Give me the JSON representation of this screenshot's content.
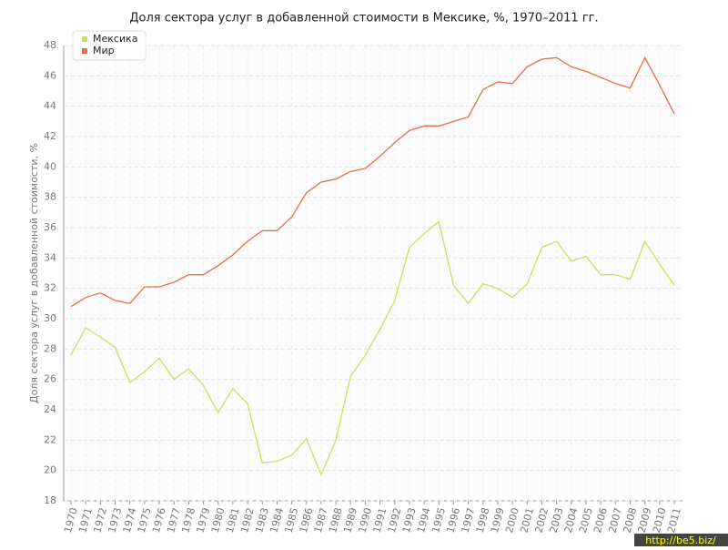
{
  "chart_data": {
    "type": "line",
    "title": "Доля сектора услуг в добавленной стоимости в Мексике, %, 1970–2011 гг.",
    "y_label": "Доля сектора услуг в добавленной стоимости, %",
    "categories": [
      "1970",
      "1971",
      "1972",
      "1973",
      "1974",
      "1975",
      "1976",
      "1977",
      "1978",
      "1979",
      "1980",
      "1981",
      "1982",
      "1983",
      "1984",
      "1985",
      "1986",
      "1987",
      "1988",
      "1989",
      "1990",
      "1991",
      "1992",
      "1993",
      "1994",
      "1995",
      "1996",
      "1997",
      "1998",
      "1999",
      "2000",
      "2001",
      "2002",
      "2003",
      "2004",
      "2005",
      "2006",
      "2007",
      "2008",
      "2009",
      "2010",
      "2011"
    ],
    "series": [
      {
        "name": "Мексика",
        "color": "#c8e05c",
        "values": [
          27.6,
          29.4,
          28.8,
          28.1,
          25.8,
          26.5,
          27.4,
          26.0,
          26.7,
          25.6,
          23.8,
          25.4,
          24.4,
          20.5,
          20.6,
          21.0,
          22.1,
          19.7,
          22.0,
          26.2,
          27.6,
          29.3,
          31.2,
          34.7,
          35.6,
          36.4,
          32.2,
          31.0,
          32.3,
          32.0,
          31.4,
          32.3,
          34.7,
          35.1,
          33.8,
          34.1,
          32.9,
          32.9,
          32.6,
          35.1,
          33.6,
          32.2
        ]
      },
      {
        "name": "Мир",
        "color": "#e0704a",
        "values": [
          30.8,
          31.4,
          31.7,
          31.2,
          31.0,
          32.1,
          32.1,
          32.4,
          32.9,
          32.9,
          33.5,
          34.2,
          35.1,
          35.8,
          35.8,
          36.7,
          38.3,
          39.0,
          39.2,
          39.7,
          39.9,
          40.7,
          41.6,
          42.4,
          42.7,
          42.7,
          43.0,
          43.3,
          45.1,
          45.6,
          45.5,
          46.6,
          47.1,
          47.2,
          46.6,
          46.3,
          45.9,
          45.5,
          45.2,
          47.2,
          45.4,
          43.5
        ]
      }
    ],
    "ylim": [
      18,
      48
    ],
    "yticks": [
      18,
      20,
      22,
      24,
      26,
      28,
      30,
      32,
      34,
      36,
      38,
      40,
      42,
      44,
      46,
      48
    ],
    "grid": true,
    "legend": "top-left",
    "watermark": "http://be5.biz/"
  }
}
